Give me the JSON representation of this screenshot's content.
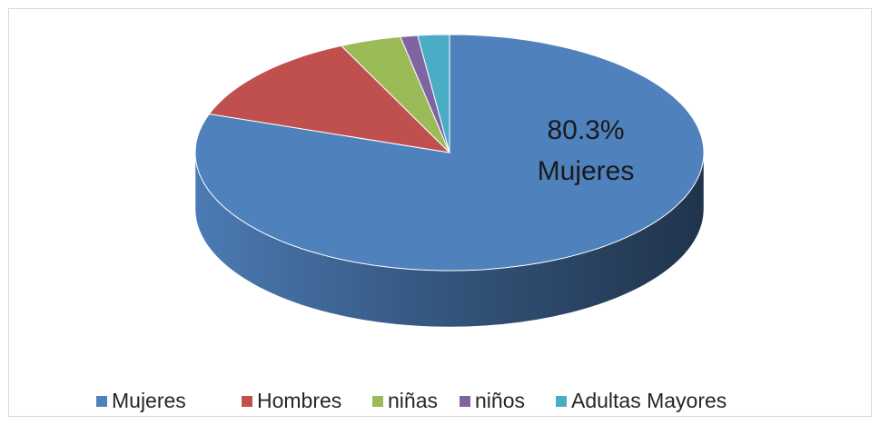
{
  "chart_data": {
    "type": "pie3d",
    "categories": [
      "Mujeres",
      "Hombres",
      "niñas",
      "niños",
      "Adultas Mayores"
    ],
    "values": [
      80.3,
      12.7,
      3.9,
      1.1,
      2.0
    ],
    "value_labels": [
      "80.3%",
      null,
      null,
      null,
      null
    ],
    "colors": [
      "#4f81bd",
      "#c0504d",
      "#9bbb59",
      "#8064a2",
      "#4bacc6"
    ],
    "legend": "bottom"
  }
}
